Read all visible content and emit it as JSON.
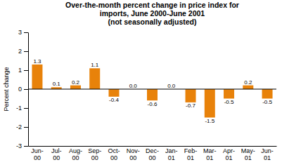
{
  "chart_data": {
    "type": "bar",
    "title": "Over-the-month percent change in price index for\nimports, June 2000-June 2001\n(not seasonally adjusted)",
    "categories": [
      "Jun-\n00",
      "Jul-\n00",
      "Aug-\n00",
      "Sep-\n00",
      "Oct-\n00",
      "Nov-\n00",
      "Dec-\n00",
      "Jan-\n01",
      "Feb-\n01",
      "Mar-\n01",
      "Apr-\n01",
      "May-\n01",
      "Jun-\n01"
    ],
    "values": [
      1.3,
      0.1,
      0.2,
      1.1,
      -0.4,
      0.0,
      -0.6,
      0.0,
      -0.7,
      -1.5,
      -0.5,
      0.2,
      -0.5
    ],
    "value_labels": [
      "1.3",
      "0.1",
      "0.2",
      "1.1",
      "-0.4",
      "0.0",
      "-0.6",
      "0.0",
      "-0.7",
      "-1.5",
      "-0.5",
      "0.2",
      "-0.5"
    ],
    "data_labels": true,
    "color": "#E8820A",
    "ylabel": "Percent change",
    "ylim": [
      -3,
      3
    ],
    "yticks": [
      -3,
      -2,
      -1,
      0,
      1,
      2,
      3
    ],
    "grid": false
  }
}
